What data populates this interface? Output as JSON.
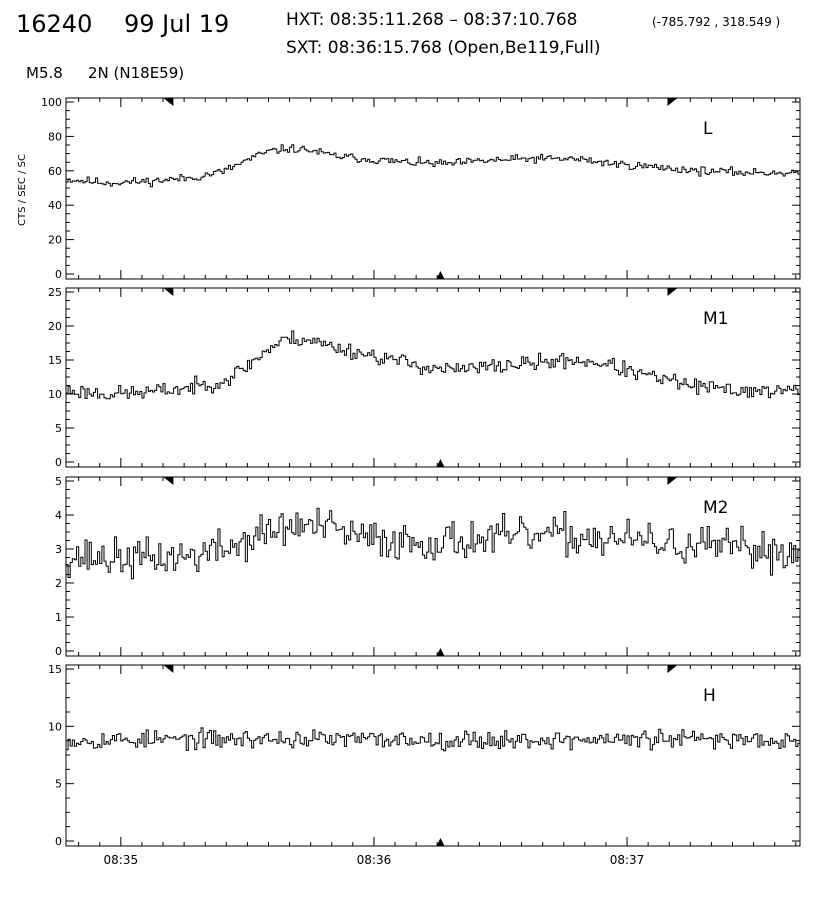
{
  "header": {
    "event_id": "16240",
    "date": "99 Jul 19",
    "hxt_range": "HXT: 08:35:11.268 – 08:37:10.768",
    "coords": "(-785.792 , 318.549 )",
    "sxt": "SXT: 08:36:15.768 (Open,Be119,Full)",
    "goes_class": "M5.8",
    "flare": "2N (N18E59)"
  },
  "chart_data": {
    "type": "line",
    "ylabel": "CTS / SEC / SC",
    "x_range": [
      "08:34:47",
      "08:37:41"
    ],
    "x_ticks": [
      "08:35",
      "08:36",
      "08:37"
    ],
    "markers": {
      "hxt_start": "08:35:11.268",
      "hxt_end": "08:37:10.768",
      "sxt": "08:36:15.768"
    },
    "line_color": "#000000",
    "panels": [
      {
        "name": "L",
        "ylim": [
          0,
          100
        ],
        "yticks": [
          "0",
          "20",
          "40",
          "60",
          "80",
          "100"
        ],
        "knots": [
          [
            0,
            55
          ],
          [
            20,
            53
          ],
          [
            40,
            54
          ],
          [
            60,
            56
          ],
          [
            75,
            60
          ],
          [
            85,
            66
          ],
          [
            95,
            71
          ],
          [
            105,
            73
          ],
          [
            115,
            72
          ],
          [
            125,
            69
          ],
          [
            140,
            67
          ],
          [
            160,
            65
          ],
          [
            180,
            64
          ],
          [
            200,
            66
          ],
          [
            220,
            67
          ],
          [
            240,
            67
          ],
          [
            260,
            64
          ],
          [
            280,
            62
          ],
          [
            300,
            60
          ],
          [
            320,
            59
          ],
          [
            348,
            59
          ]
        ],
        "noise": 1.5,
        "seed": 11
      },
      {
        "name": "M1",
        "ylim": [
          0,
          25
        ],
        "yticks": [
          "0",
          "5",
          "10",
          "15",
          "20",
          "25"
        ],
        "knots": [
          [
            0,
            10.5
          ],
          [
            20,
            10
          ],
          [
            40,
            10.3
          ],
          [
            60,
            11
          ],
          [
            75,
            12
          ],
          [
            85,
            14
          ],
          [
            95,
            16.5
          ],
          [
            105,
            18.2
          ],
          [
            115,
            18
          ],
          [
            125,
            17
          ],
          [
            140,
            16
          ],
          [
            155,
            15
          ],
          [
            170,
            14
          ],
          [
            185,
            13.5
          ],
          [
            200,
            14
          ],
          [
            220,
            14.5
          ],
          [
            240,
            15
          ],
          [
            255,
            14.5
          ],
          [
            270,
            13
          ],
          [
            285,
            12
          ],
          [
            300,
            11
          ],
          [
            320,
            10.5
          ],
          [
            348,
            10.5
          ]
        ],
        "noise": 0.7,
        "seed": 23
      },
      {
        "name": "M2",
        "ylim": [
          0,
          5
        ],
        "yticks": [
          "0",
          "1",
          "2",
          "3",
          "4",
          "5"
        ],
        "knots": [
          [
            0,
            2.8
          ],
          [
            30,
            2.7
          ],
          [
            60,
            2.8
          ],
          [
            80,
            3.1
          ],
          [
            95,
            3.5
          ],
          [
            110,
            3.7
          ],
          [
            125,
            3.6
          ],
          [
            140,
            3.3
          ],
          [
            170,
            3.2
          ],
          [
            200,
            3.3
          ],
          [
            230,
            3.4
          ],
          [
            260,
            3.3
          ],
          [
            290,
            3.1
          ],
          [
            320,
            3.0
          ],
          [
            348,
            2.9
          ]
        ],
        "noise": 0.35,
        "seed": 37
      },
      {
        "name": "H",
        "ylim": [
          0,
          15
        ],
        "yticks": [
          "0",
          "5",
          "10",
          "15"
        ],
        "knots": [
          [
            0,
            8.8
          ],
          [
            100,
            8.9
          ],
          [
            200,
            8.8
          ],
          [
            348,
            8.9
          ]
        ],
        "noise": 0.5,
        "seed": 53
      }
    ]
  }
}
